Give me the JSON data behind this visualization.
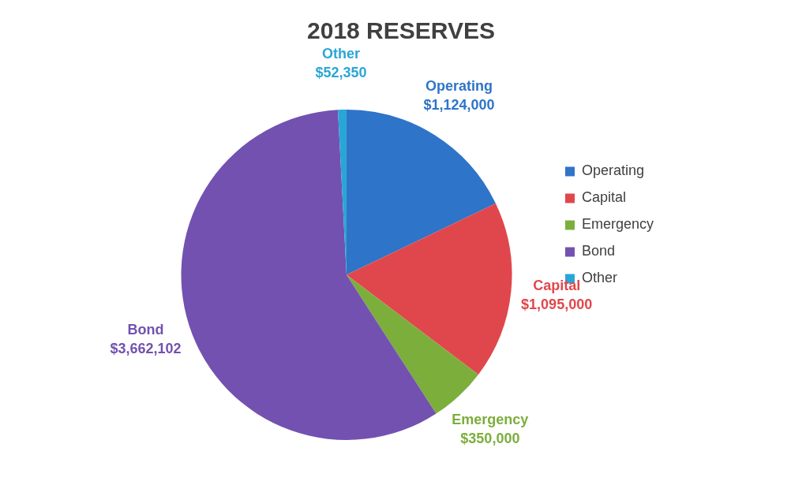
{
  "chart_data": {
    "type": "pie",
    "title": "2018 RESERVES",
    "categories": [
      "Operating",
      "Capital",
      "Emergency",
      "Bond",
      "Other"
    ],
    "values": [
      1124000,
      1095000,
      350000,
      3662102,
      52350
    ],
    "value_labels": [
      "$1,124,000",
      "$1,095,000",
      "$350,000",
      "$3,662,102",
      "$52,350"
    ],
    "colors": [
      "#2e74c8",
      "#e0474c",
      "#7cae3c",
      "#7351b0",
      "#2aa6d6"
    ],
    "legend": "right"
  }
}
